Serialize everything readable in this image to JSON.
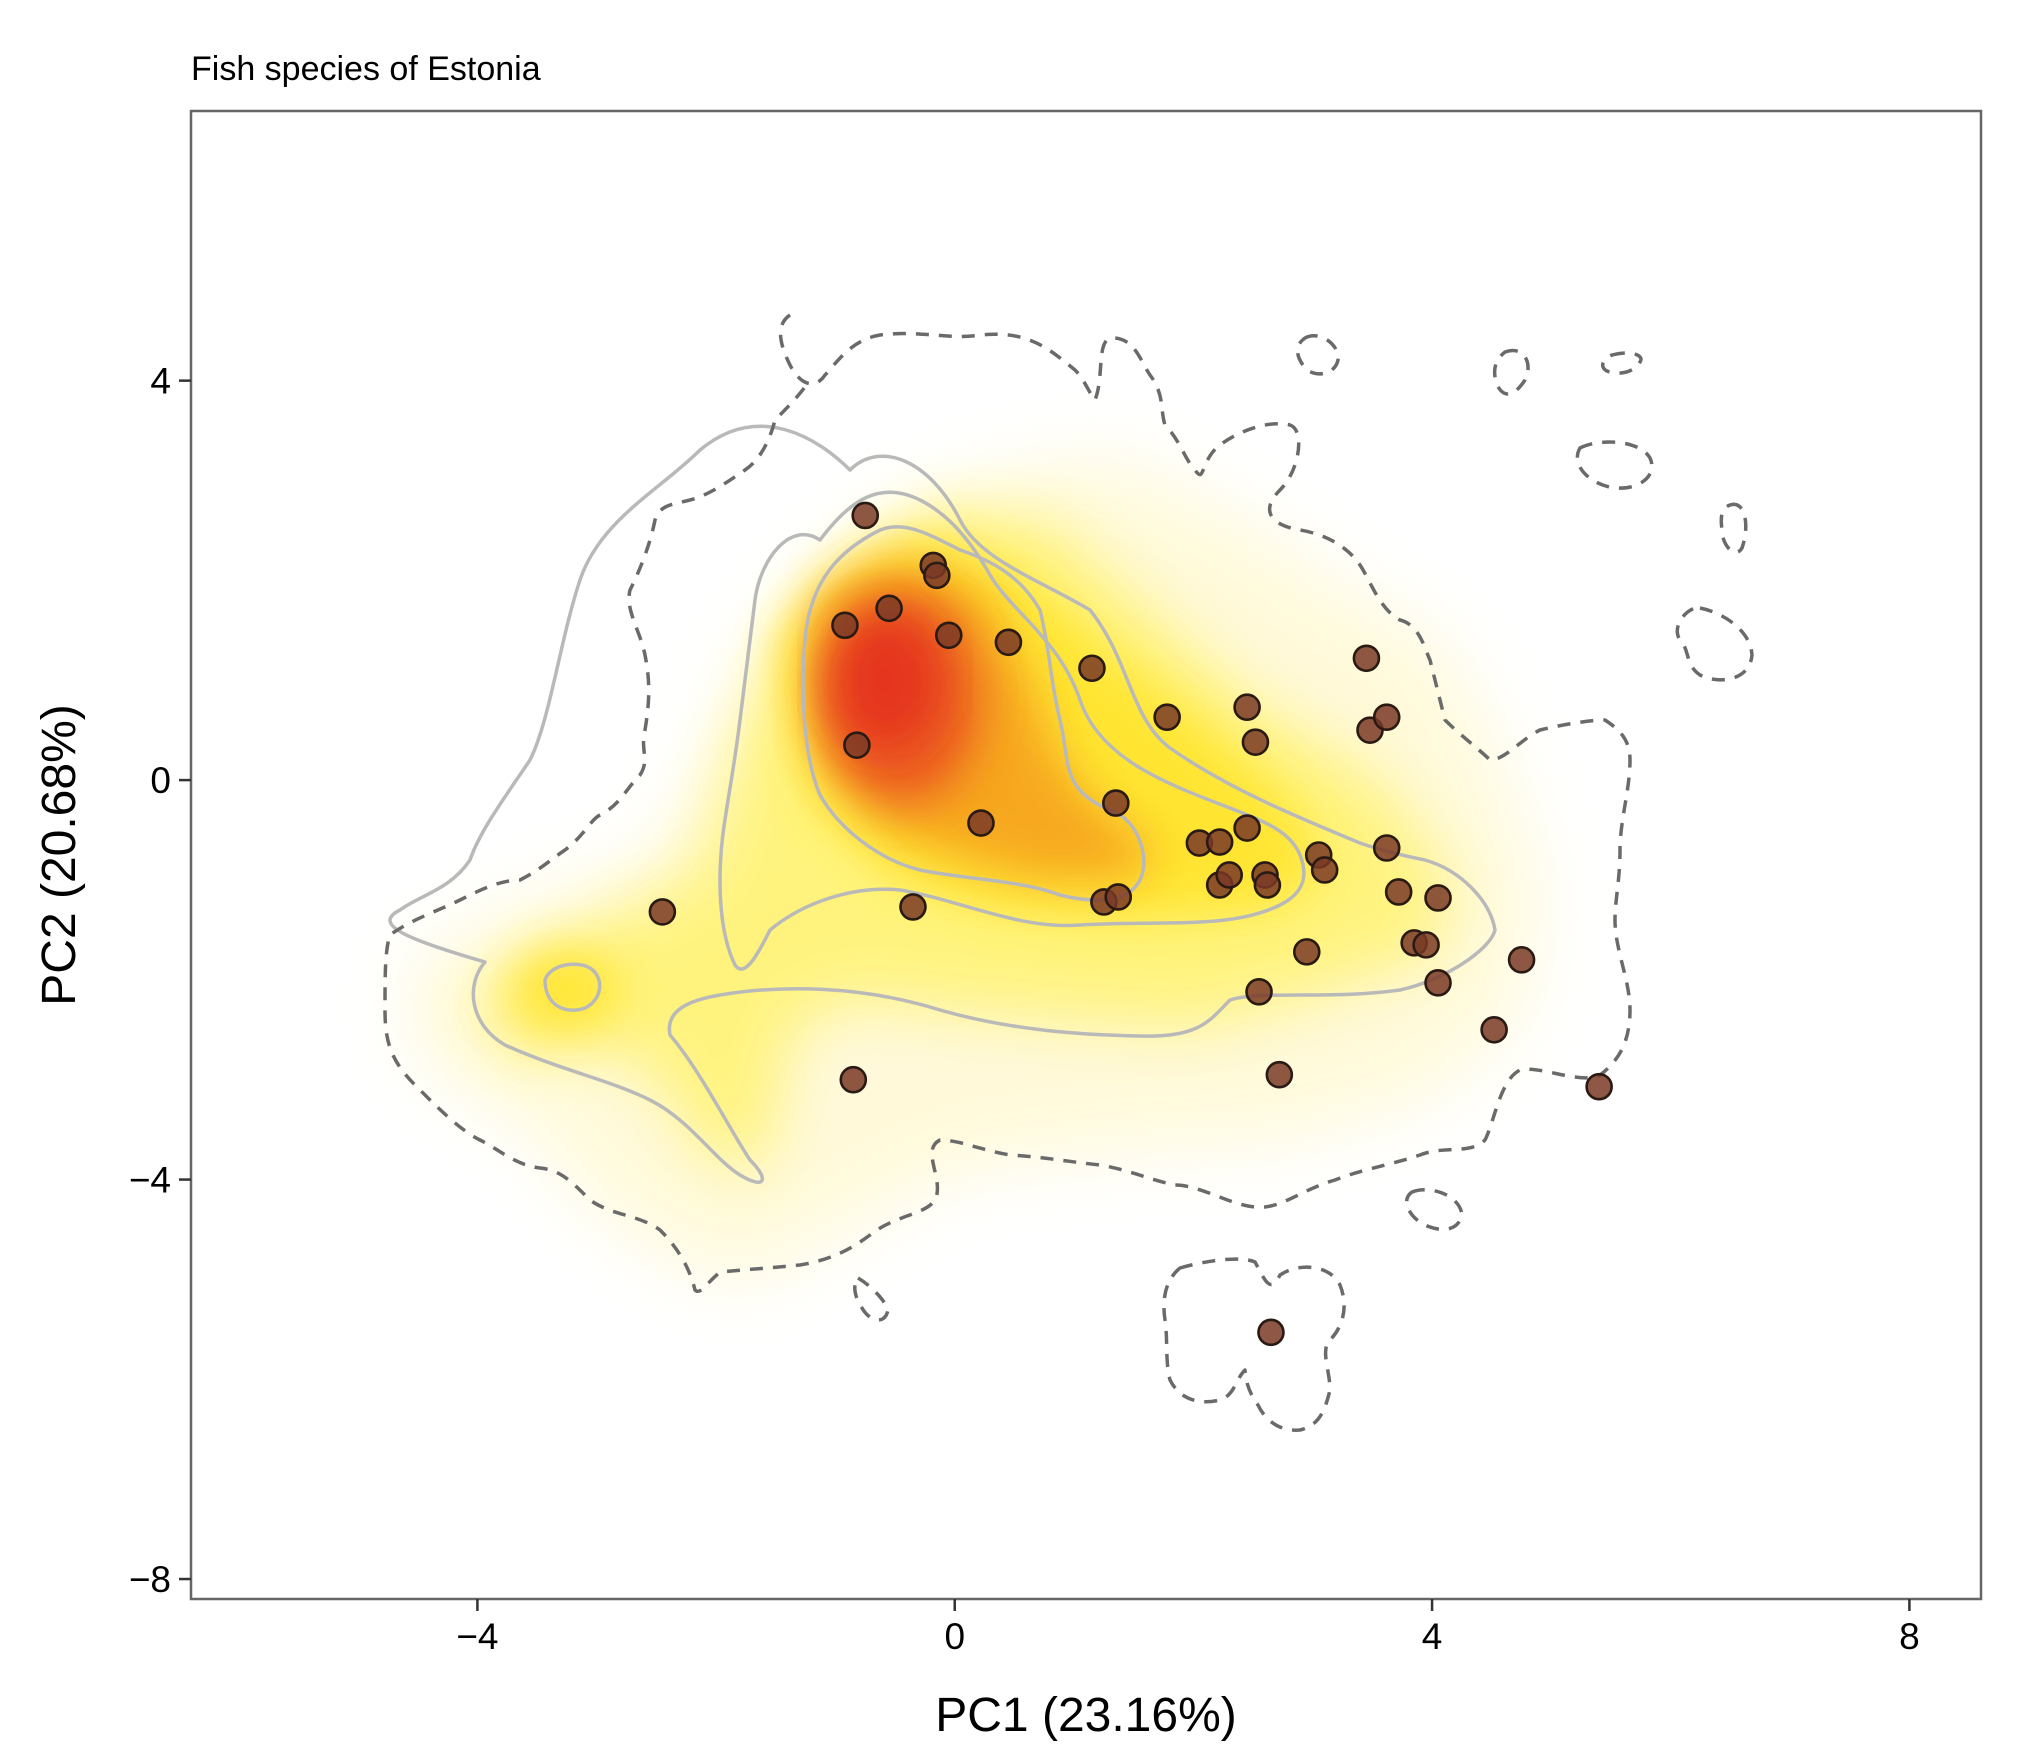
{
  "chart_data": {
    "type": "scatter",
    "title": "Fish species of Estonia",
    "xlabel": "PC1 (23.16%)",
    "ylabel": "PC2 (20.68%)",
    "xlim": [
      -6.4,
      8.6
    ],
    "ylim": [
      -8.2,
      6.7
    ],
    "xticks": [
      -4,
      0,
      4,
      8
    ],
    "xtick_labels": [
      "−4",
      "0",
      "4",
      "8"
    ],
    "yticks": [
      4,
      0,
      -4,
      -8
    ],
    "ytick_labels": [
      "4",
      "0",
      "−4",
      "−8"
    ],
    "grid": false,
    "overlay": "2D density heatmap (white → yellow → red) with contour lines",
    "colors": {
      "point_fill": "#7a3a26",
      "point_stroke": "#2a1a14",
      "density_low": "#ffffcc",
      "density_mid": "#ffeb3b",
      "density_high": "#e8231c",
      "contour_solid": "#b9b9b9",
      "contour_dashed": "#6a6a6a",
      "frame": "#666666"
    },
    "points": [
      {
        "x": -0.75,
        "y": 2.65
      },
      {
        "x": -0.18,
        "y": 2.15
      },
      {
        "x": -0.15,
        "y": 2.05
      },
      {
        "x": -0.55,
        "y": 1.72
      },
      {
        "x": -0.92,
        "y": 1.55
      },
      {
        "x": -0.05,
        "y": 1.45
      },
      {
        "x": 0.45,
        "y": 1.38
      },
      {
        "x": 1.15,
        "y": 1.12
      },
      {
        "x": -0.82,
        "y": 0.35
      },
      {
        "x": 1.78,
        "y": 0.63
      },
      {
        "x": 2.45,
        "y": 0.73
      },
      {
        "x": 2.52,
        "y": 0.38
      },
      {
        "x": 3.45,
        "y": 1.22
      },
      {
        "x": 3.48,
        "y": 0.5
      },
      {
        "x": 3.62,
        "y": 0.63
      },
      {
        "x": 1.35,
        "y": -0.23
      },
      {
        "x": 0.22,
        "y": -0.43
      },
      {
        "x": 2.45,
        "y": -0.48
      },
      {
        "x": 2.05,
        "y": -0.63
      },
      {
        "x": 2.22,
        "y": -0.62
      },
      {
        "x": 2.22,
        "y": -1.05
      },
      {
        "x": 2.3,
        "y": -0.95
      },
      {
        "x": 2.6,
        "y": -0.95
      },
      {
        "x": 2.62,
        "y": -1.05
      },
      {
        "x": 3.05,
        "y": -0.75
      },
      {
        "x": 3.1,
        "y": -0.9
      },
      {
        "x": 3.62,
        "y": -0.68
      },
      {
        "x": 3.72,
        "y": -1.12
      },
      {
        "x": 4.05,
        "y": -1.18
      },
      {
        "x": 3.85,
        "y": -1.63
      },
      {
        "x": 3.95,
        "y": -1.65
      },
      {
        "x": 2.95,
        "y": -1.72
      },
      {
        "x": 4.75,
        "y": -1.8
      },
      {
        "x": 2.55,
        "y": -2.12
      },
      {
        "x": 4.05,
        "y": -2.03
      },
      {
        "x": 4.52,
        "y": -2.5
      },
      {
        "x": 5.4,
        "y": -3.07
      },
      {
        "x": 2.72,
        "y": -2.95
      },
      {
        "x": -0.35,
        "y": -1.27
      },
      {
        "x": 1.25,
        "y": -1.22
      },
      {
        "x": 1.37,
        "y": -1.17
      },
      {
        "x": -2.45,
        "y": -1.32
      },
      {
        "x": -0.85,
        "y": -3.0
      },
      {
        "x": 2.65,
        "y": -5.53
      }
    ]
  }
}
